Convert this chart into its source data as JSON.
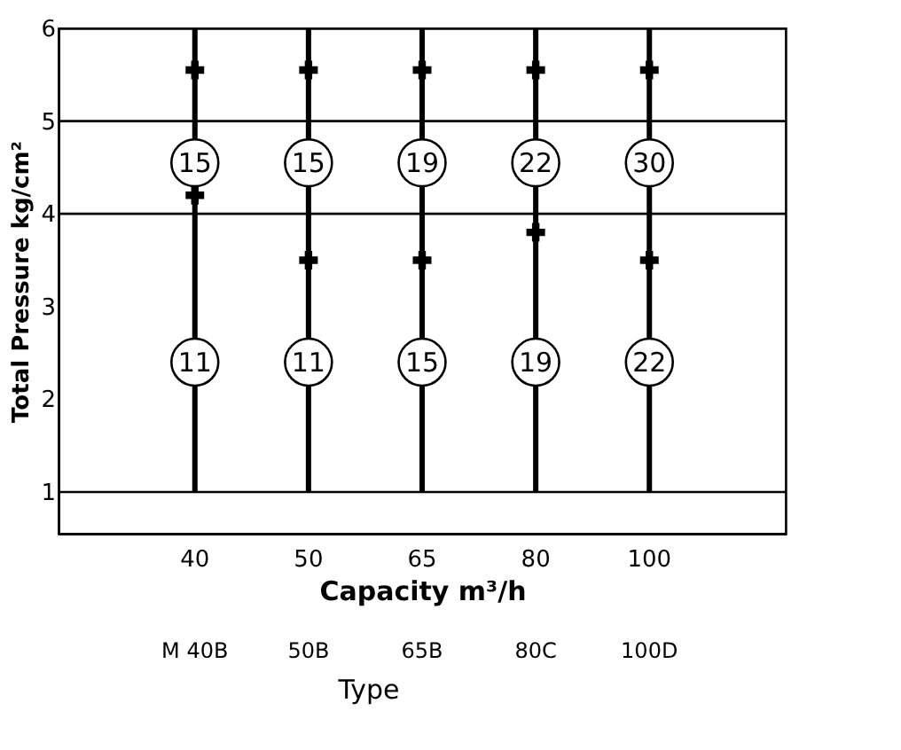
{
  "chart_data": {
    "type": "bar",
    "categories": [
      "40",
      "50",
      "65",
      "80",
      "100"
    ],
    "xlabel": "Capacity m³/h",
    "ylabel": "Total Pressure kg/cm²",
    "series": [
      {
        "color": "#000000",
        "values": [
          5,
          5,
          5,
          5,
          5
        ],
        "base": [
          1,
          1,
          1,
          1,
          1
        ]
      },
      {
        "type": "scatter",
        "color": "#000000",
        "values": [
          5.55,
          5.55,
          5.55,
          5.55,
          5.55
        ]
      },
      {
        "type": "scatter",
        "color": "#000000",
        "values": [
          4.2,
          3.5,
          3.5,
          3.8,
          3.5
        ]
      }
    ],
    "ylim": [
      0.55,
      6
    ],
    "yticks": [
      1,
      2,
      3,
      4,
      5,
      6
    ],
    "ref_lines": [
      {
        "axis": "y",
        "value": 1,
        "color": "#000000"
      },
      {
        "axis": "y",
        "value": 4,
        "color": "#000000"
      },
      {
        "axis": "y",
        "value": 5,
        "color": "#000000"
      }
    ],
    "annotations": [
      {
        "text": "15",
        "x": "40",
        "y": 4.55
      },
      {
        "text": "15",
        "x": "50",
        "y": 4.55
      },
      {
        "text": "19",
        "x": "65",
        "y": 4.55
      },
      {
        "text": "22",
        "x": "80",
        "y": 4.55
      },
      {
        "text": "30",
        "x": "100",
        "y": 4.55
      },
      {
        "text": "11",
        "x": "40",
        "y": 2.4
      },
      {
        "text": "11",
        "x": "50",
        "y": 2.4
      },
      {
        "text": "15",
        "x": "65",
        "y": 2.4
      },
      {
        "text": "19",
        "x": "80",
        "y": 2.4
      },
      {
        "text": "22",
        "x": "100",
        "y": 2.4
      },
      "M 40B",
      "50B",
      "65B",
      "80C",
      "100D",
      "Type"
    ],
    "grid": false,
    "marker": "cross"
  }
}
